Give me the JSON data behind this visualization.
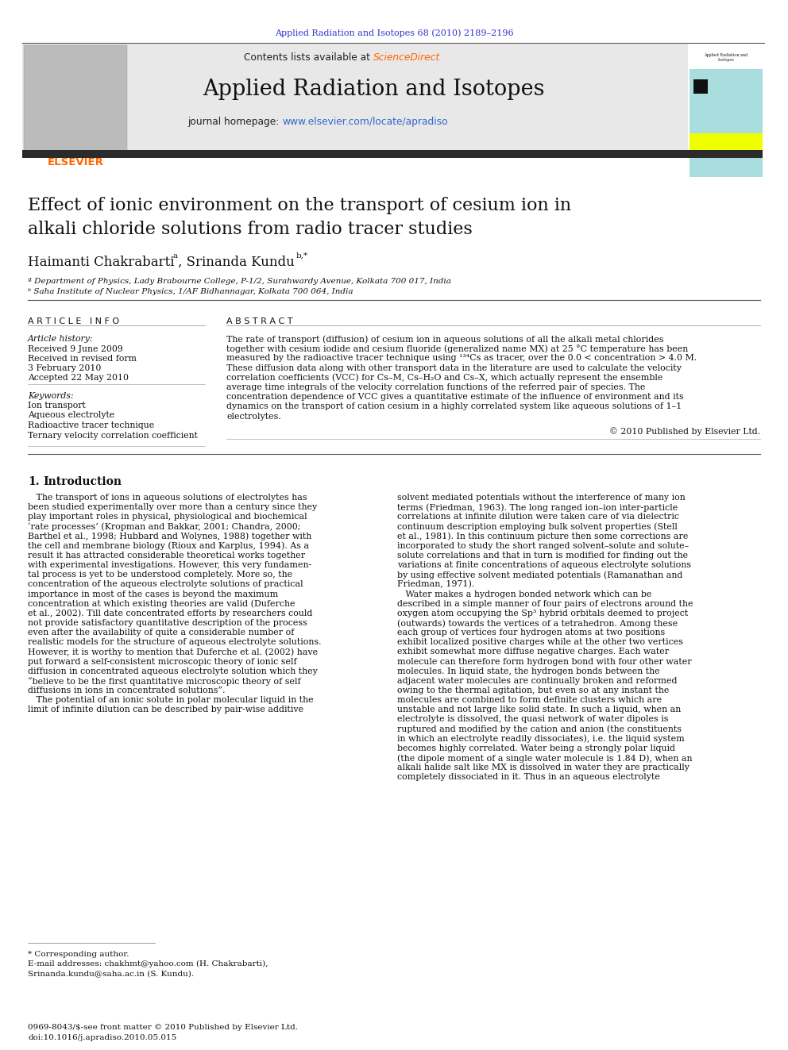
{
  "page_bg": "#ffffff",
  "header_journal_ref": "Applied Radiation and Isotopes 68 (2010) 2189–2196",
  "header_journal_ref_color": "#3333cc",
  "journal_name": "Applied Radiation and Isotopes",
  "contents_text": "Contents lists available at ",
  "sciencedirect_text": "ScienceDirect",
  "sciencedirect_color": "#ff6600",
  "journal_homepage_text": "journal homepage: ",
  "journal_url": "www.elsevier.com/locate/apradiso",
  "journal_url_color": "#3366cc",
  "header_bar_color": "#2b2b2b",
  "header_bg_color": "#e8e8e8",
  "elsevier_color": "#ff6600",
  "elsevier_text": "ELSEVIER",
  "article_title": "Effect of ionic environment on the transport of cesium ion in\nalkali chloride solutions from radio tracer studies",
  "affil_a": "ª Department of Physics, Lady Brabourne College, P-1/2, Surahwardy Avenue, Kolkata 700 017, India",
  "affil_b": "ᵇ Saha Institute of Nuclear Physics, 1/AF Bidhannagar, Kolkata 700 064, India",
  "article_info_header": "A R T I C L E   I N F O",
  "abstract_header": "A B S T R A C T",
  "article_history_label": "Article history:",
  "received_label": "Received 9 June 2009",
  "revised_label": "Received in revised form",
  "revised_date": "3 February 2010",
  "accepted_label": "Accepted 22 May 2010",
  "keywords_label": "Keywords:",
  "keywords": [
    "Ion transport",
    "Aqueous electrolyte",
    "Radioactive tracer technique",
    "Ternary velocity correlation coefficient"
  ],
  "copyright_text": "© 2010 Published by Elsevier Ltd.",
  "footnote_corresponding": "* Corresponding author.",
  "footnote_email1": "E-mail addresses: chakhmt@yahoo.com (H. Chakrabarti),",
  "footnote_email2": "Srinanda.kundu@saha.ac.in (S. Kundu).",
  "footer_issn": "0969-8043/$-see front matter © 2010 Published by Elsevier Ltd.",
  "footer_doi": "doi:10.1016/j.apradiso.2010.05.015",
  "abstract_lines": [
    "The rate of transport (diffusion) of cesium ion in aqueous solutions of all the alkali metal chlorides",
    "together with cesium iodide and cesium fluoride (generalized name MX) at 25 °C temperature has been",
    "measured by the radioactive tracer technique using ¹³⁴Cs as tracer, over the 0.0 < concentration > 4.0 M.",
    "These diffusion data along with other transport data in the literature are used to calculate the velocity",
    "correlation coefficients (VCC) for Cs–M, Cs–H₂O and Cs–X, which actually represent the ensemble",
    "average time integrals of the velocity correlation functions of the referred pair of species. The",
    "concentration dependence of VCC gives a quantitative estimate of the influence of environment and its",
    "dynamics on the transport of cation cesium in a highly correlated system like aqueous solutions of 1–1",
    "electrolytes."
  ],
  "left_col_lines": [
    "   The transport of ions in aqueous solutions of electrolytes has",
    "been studied experimentally over more than a century since they",
    "play important roles in physical, physiological and biochemical",
    "‘rate processes’ (Kropman and Bakkar, 2001; Chandra, 2000;",
    "Barthel et al., 1998; Hubbard and Wolynes, 1988) together with",
    "the cell and membrane biology (Rioux and Karplus, 1994). As a",
    "result it has attracted considerable theoretical works together",
    "with experimental investigations. However, this very fundamen-",
    "tal process is yet to be understood completely. More so, the",
    "concentration of the aqueous electrolyte solutions of practical",
    "importance in most of the cases is beyond the maximum",
    "concentration at which existing theories are valid (Duferche",
    "et al., 2002). Till date concentrated efforts by researchers could",
    "not provide satisfactory quantitative description of the process",
    "even after the availability of quite a considerable number of",
    "realistic models for the structure of aqueous electrolyte solutions.",
    "However, it is worthy to mention that Duferche et al. (2002) have",
    "put forward a self-consistent microscopic theory of ionic self",
    "diffusion in concentrated aqueous electrolyte solution which they",
    "“believe to be the first quantitative microscopic theory of self",
    "diffusions in ions in concentrated solutions”.",
    "   The potential of an ionic solute in polar molecular liquid in the",
    "limit of infinite dilution can be described by pair-wise additive"
  ],
  "right_col_lines": [
    "solvent mediated potentials without the interference of many ion",
    "terms (Friedman, 1963). The long ranged ion–ion inter-particle",
    "correlations at infinite dilution were taken care of via dielectric",
    "continuum description employing bulk solvent properties (Stell",
    "et al., 1981). In this continuum picture then some corrections are",
    "incorporated to study the short ranged solvent–solute and solute–",
    "solute correlations and that in turn is modified for finding out the",
    "variations at finite concentrations of aqueous electrolyte solutions",
    "by using effective solvent mediated potentials (Ramanathan and",
    "Friedman, 1971).",
    "   Water makes a hydrogen bonded network which can be",
    "described in a simple manner of four pairs of electrons around the",
    "oxygen atom occupying the Sp³ hybrid orbitals deemed to project",
    "(outwards) towards the vertices of a tetrahedron. Among these",
    "each group of vertices four hydrogen atoms at two positions",
    "exhibit localized positive charges while at the other two vertices",
    "exhibit somewhat more diffuse negative charges. Each water",
    "molecule can therefore form hydrogen bond with four other water",
    "molecules. In liquid state, the hydrogen bonds between the",
    "adjacent water molecules are continually broken and reformed",
    "owing to the thermal agitation, but even so at any instant the",
    "molecules are combined to form definite clusters which are",
    "unstable and not large like solid state. In such a liquid, when an",
    "electrolyte is dissolved, the quasi network of water dipoles is",
    "ruptured and modified by the cation and anion (the constituents",
    "in which an electrolyte readily dissociates), i.e. the liquid system",
    "becomes highly correlated. Water being a strongly polar liquid",
    "(the dipole moment of a single water molecule is 1.84 D), when an",
    "alkali halide salt like MX is dissolved in water they are practically",
    "completely dissociated in it. Thus in an aqueous electrolyte"
  ]
}
